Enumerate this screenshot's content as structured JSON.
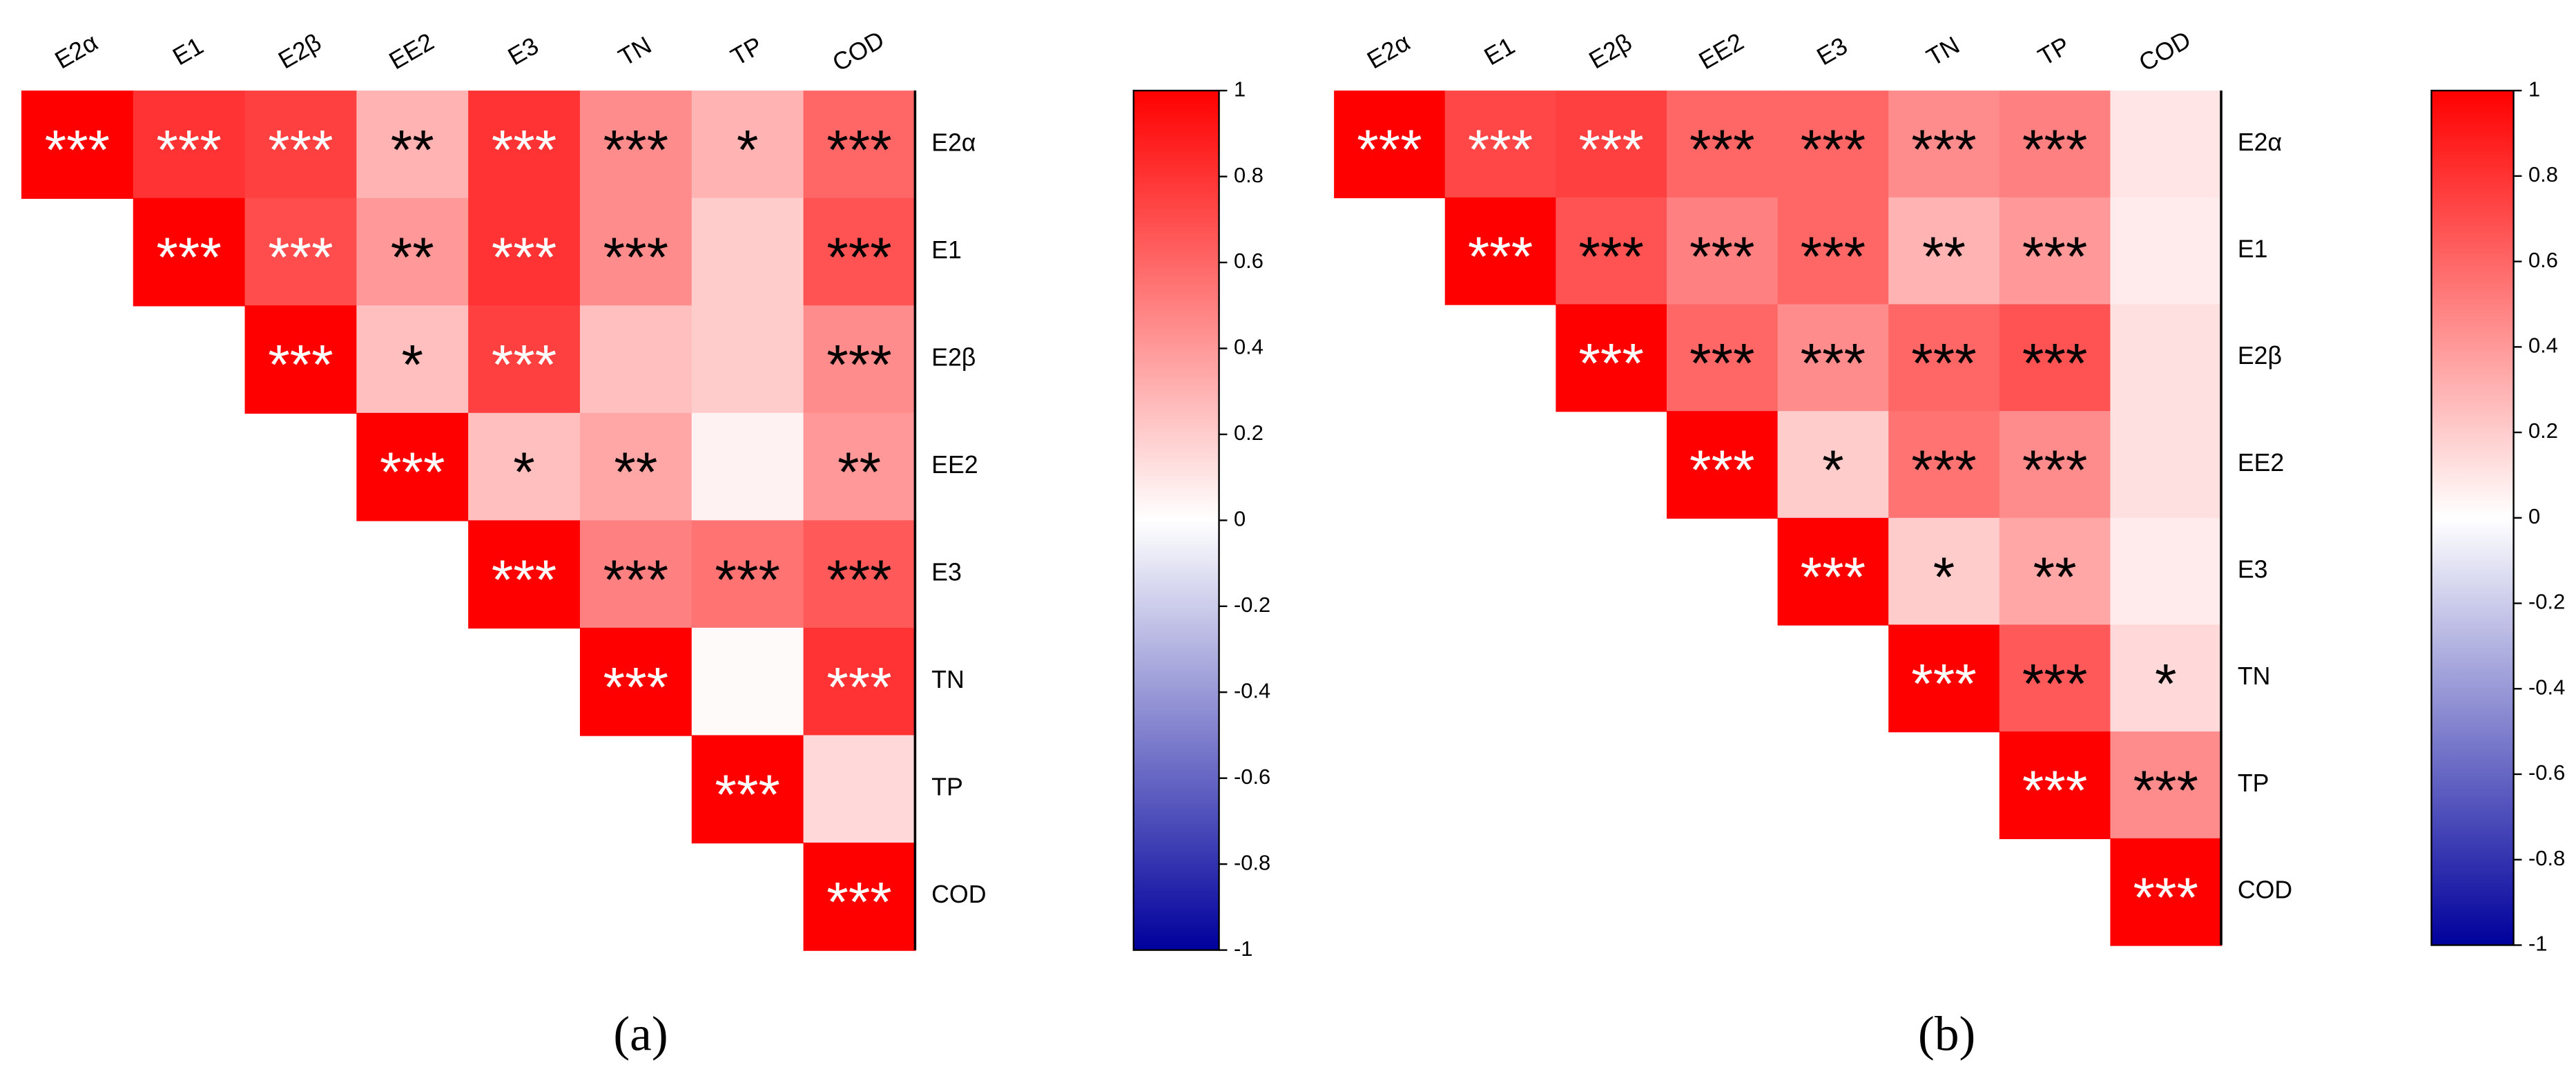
{
  "chart_data": [
    {
      "type": "heatmap",
      "caption": "(a)",
      "categories": [
        "E2α",
        "E1",
        "E2β",
        "EE2",
        "E3",
        "TN",
        "TP",
        "COD"
      ],
      "rows": [
        "E2α",
        "E1",
        "E2β",
        "EE2",
        "E3",
        "TN",
        "TP",
        "COD"
      ],
      "values": [
        [
          1,
          0.8,
          0.75,
          0.3,
          0.8,
          0.45,
          0.3,
          0.6
        ],
        [
          null,
          1,
          0.7,
          0.4,
          0.8,
          0.45,
          0.2,
          0.68
        ],
        [
          null,
          null,
          1,
          0.25,
          0.75,
          0.25,
          0.2,
          0.45
        ],
        [
          null,
          null,
          null,
          1,
          0.25,
          0.35,
          0.05,
          0.4
        ],
        [
          null,
          null,
          null,
          null,
          1,
          0.5,
          0.55,
          0.65
        ],
        [
          null,
          null,
          null,
          null,
          null,
          1,
          0.02,
          0.8
        ],
        [
          null,
          null,
          null,
          null,
          null,
          null,
          1,
          0.15
        ],
        [
          null,
          null,
          null,
          null,
          null,
          null,
          null,
          1
        ]
      ],
      "annotations": [
        [
          "***",
          "***",
          "***",
          "**",
          "***",
          "***",
          "*",
          "***"
        ],
        [
          null,
          "***",
          "***",
          "**",
          "***",
          "***",
          null,
          "***"
        ],
        [
          null,
          null,
          "***",
          "*",
          "***",
          null,
          null,
          "***"
        ],
        [
          null,
          null,
          null,
          "***",
          "*",
          "**",
          null,
          "**"
        ],
        [
          null,
          null,
          null,
          null,
          "***",
          "***",
          "***",
          "***"
        ],
        [
          null,
          null,
          null,
          null,
          null,
          "***",
          null,
          "***"
        ],
        [
          null,
          null,
          null,
          null,
          null,
          null,
          "***",
          null
        ],
        [
          null,
          null,
          null,
          null,
          null,
          null,
          null,
          "***"
        ]
      ],
      "colorscale": [
        "#00009c",
        "#ffffff",
        "#ff0000"
      ],
      "zlim": [
        -1,
        1
      ],
      "zticks": [
        -1,
        -0.8,
        -0.6,
        -0.4,
        -0.2,
        0,
        0.2,
        0.4,
        0.6,
        0.8,
        1
      ]
    },
    {
      "type": "heatmap",
      "caption": "(b)",
      "categories": [
        "E2α",
        "E1",
        "E2β",
        "EE2",
        "E3",
        "TN",
        "TP",
        "COD"
      ],
      "rows": [
        "E2α",
        "E1",
        "E2β",
        "EE2",
        "E3",
        "TN",
        "TP",
        "COD"
      ],
      "values": [
        [
          1,
          0.72,
          0.75,
          0.6,
          0.6,
          0.45,
          0.5,
          0.1
        ],
        [
          null,
          1,
          0.68,
          0.5,
          0.6,
          0.3,
          0.4,
          0.08
        ],
        [
          null,
          null,
          1,
          0.6,
          0.45,
          0.6,
          0.68,
          0.12
        ],
        [
          null,
          null,
          null,
          1,
          0.2,
          0.55,
          0.45,
          0.12
        ],
        [
          null,
          null,
          null,
          null,
          1,
          0.2,
          0.35,
          0.08
        ],
        [
          null,
          null,
          null,
          null,
          null,
          1,
          0.65,
          0.15
        ],
        [
          null,
          null,
          null,
          null,
          null,
          null,
          1,
          0.45
        ],
        [
          null,
          null,
          null,
          null,
          null,
          null,
          null,
          1
        ]
      ],
      "annotations": [
        [
          "***",
          "***",
          "***",
          "***",
          "***",
          "***",
          "***",
          null
        ],
        [
          null,
          "***",
          "***",
          "***",
          "***",
          "**",
          "***",
          null
        ],
        [
          null,
          null,
          "***",
          "***",
          "***",
          "***",
          "***",
          null
        ],
        [
          null,
          null,
          null,
          "***",
          "*",
          "***",
          "***",
          null
        ],
        [
          null,
          null,
          null,
          null,
          "***",
          "*",
          "**",
          null
        ],
        [
          null,
          null,
          null,
          null,
          null,
          "***",
          "***",
          "*"
        ],
        [
          null,
          null,
          null,
          null,
          null,
          null,
          "***",
          "***"
        ],
        [
          null,
          null,
          null,
          null,
          null,
          null,
          null,
          "***"
        ]
      ],
      "colorscale": [
        "#00009c",
        "#ffffff",
        "#ff0000"
      ],
      "zlim": [
        -1,
        1
      ],
      "zticks": [
        -1,
        -0.8,
        -0.6,
        -0.4,
        -0.2,
        0,
        0.2,
        0.4,
        0.6,
        0.8,
        1
      ]
    }
  ]
}
